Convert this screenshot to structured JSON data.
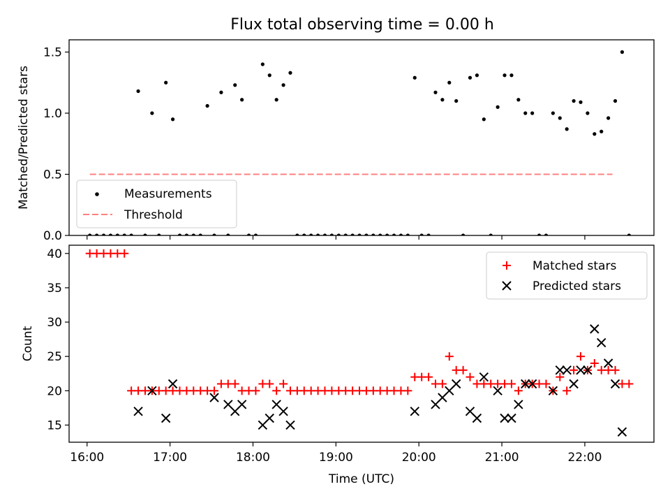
{
  "figure": {
    "title": "Flux total observing time = 0.00 h"
  },
  "chart_data": [
    {
      "type": "scatter",
      "ylabel": "Matched/Predicted stars",
      "ylim": [
        0.0,
        1.6
      ],
      "xlim_minutes": [
        -13,
        410
      ],
      "yticks": [
        {
          "v": 0.0,
          "label": "0.0"
        },
        {
          "v": 0.5,
          "label": "0.5"
        },
        {
          "v": 1.0,
          "label": "1.0"
        },
        {
          "v": 1.5,
          "label": "1.5"
        }
      ],
      "legend_position": "lower-left",
      "legend": [
        "Measurements",
        "Threshold"
      ],
      "threshold": {
        "value": 0.5,
        "x_range_minutes": [
          2,
          380
        ],
        "color": "#ff8080"
      },
      "measurements_color": "#000000",
      "measurements": [
        [
          2,
          0
        ],
        [
          7,
          0
        ],
        [
          12,
          0
        ],
        [
          17,
          0
        ],
        [
          22,
          0
        ],
        [
          27,
          0
        ],
        [
          32,
          0
        ],
        [
          37,
          1.18
        ],
        [
          42,
          0
        ],
        [
          47,
          1.0
        ],
        [
          52,
          0
        ],
        [
          57,
          1.25
        ],
        [
          62,
          0.95
        ],
        [
          67,
          0
        ],
        [
          72,
          0
        ],
        [
          77,
          0
        ],
        [
          82,
          0
        ],
        [
          87,
          1.06
        ],
        [
          92,
          0
        ],
        [
          97,
          1.17
        ],
        [
          102,
          0
        ],
        [
          107,
          1.23
        ],
        [
          112,
          1.11
        ],
        [
          117,
          0
        ],
        [
          122,
          0
        ],
        [
          127,
          1.4
        ],
        [
          132,
          1.31
        ],
        [
          137,
          1.11
        ],
        [
          142,
          1.23
        ],
        [
          147,
          1.33
        ],
        [
          152,
          0
        ],
        [
          157,
          0
        ],
        [
          162,
          0
        ],
        [
          167,
          0
        ],
        [
          172,
          0
        ],
        [
          177,
          0
        ],
        [
          182,
          0
        ],
        [
          187,
          0
        ],
        [
          192,
          0
        ],
        [
          197,
          0
        ],
        [
          202,
          0
        ],
        [
          207,
          0
        ],
        [
          212,
          0
        ],
        [
          217,
          0
        ],
        [
          222,
          0
        ],
        [
          227,
          0
        ],
        [
          232,
          0
        ],
        [
          237,
          1.29
        ],
        [
          242,
          0
        ],
        [
          247,
          0
        ],
        [
          252,
          1.17
        ],
        [
          257,
          1.11
        ],
        [
          262,
          1.25
        ],
        [
          267,
          1.1
        ],
        [
          272,
          0
        ],
        [
          277,
          1.29
        ],
        [
          282,
          1.31
        ],
        [
          287,
          0.95
        ],
        [
          292,
          0
        ],
        [
          297,
          1.05
        ],
        [
          302,
          1.31
        ],
        [
          307,
          1.31
        ],
        [
          312,
          1.11
        ],
        [
          317,
          1.0
        ],
        [
          322,
          1.0
        ],
        [
          327,
          0
        ],
        [
          332,
          0
        ],
        [
          337,
          1.0
        ],
        [
          342,
          0.96
        ],
        [
          347,
          0.87
        ],
        [
          352,
          1.1
        ],
        [
          357,
          1.09
        ],
        [
          362,
          1.0
        ],
        [
          367,
          0.83
        ],
        [
          372,
          0.85
        ],
        [
          377,
          0.96
        ],
        [
          382,
          1.1
        ],
        [
          387,
          1.5
        ],
        [
          392,
          0
        ]
      ]
    },
    {
      "type": "scatter",
      "xlabel": "Time (UTC)",
      "ylabel": "Count",
      "ylim": [
        12.5,
        41.2
      ],
      "xlim_minutes": [
        -13,
        410
      ],
      "yticks": [
        {
          "v": 15,
          "label": "15"
        },
        {
          "v": 20,
          "label": "20"
        },
        {
          "v": 25,
          "label": "25"
        },
        {
          "v": 30,
          "label": "30"
        },
        {
          "v": 35,
          "label": "35"
        },
        {
          "v": 40,
          "label": "40"
        }
      ],
      "xticks": [
        {
          "v": 0,
          "label": "16:00"
        },
        {
          "v": 60,
          "label": "17:00"
        },
        {
          "v": 120,
          "label": "18:00"
        },
        {
          "v": 180,
          "label": "19:00"
        },
        {
          "v": 240,
          "label": "20:00"
        },
        {
          "v": 300,
          "label": "21:00"
        },
        {
          "v": 360,
          "label": "22:00"
        }
      ],
      "legend_position": "upper-right",
      "legend": [
        "Matched stars",
        "Predicted stars"
      ],
      "matched_color": "#ff0000",
      "predicted_color": "#000000",
      "matched": [
        [
          2,
          40
        ],
        [
          7,
          40
        ],
        [
          12,
          40
        ],
        [
          17,
          40
        ],
        [
          22,
          40
        ],
        [
          27,
          40
        ],
        [
          32,
          20
        ],
        [
          37,
          20
        ],
        [
          42,
          20
        ],
        [
          47,
          20
        ],
        [
          52,
          20
        ],
        [
          57,
          20
        ],
        [
          62,
          20
        ],
        [
          67,
          20
        ],
        [
          72,
          20
        ],
        [
          77,
          20
        ],
        [
          82,
          20
        ],
        [
          87,
          20
        ],
        [
          92,
          20
        ],
        [
          97,
          21
        ],
        [
          102,
          21
        ],
        [
          107,
          21
        ],
        [
          112,
          20
        ],
        [
          117,
          20
        ],
        [
          122,
          20
        ],
        [
          127,
          21
        ],
        [
          132,
          21
        ],
        [
          137,
          20
        ],
        [
          142,
          21
        ],
        [
          147,
          20
        ],
        [
          152,
          20
        ],
        [
          157,
          20
        ],
        [
          162,
          20
        ],
        [
          167,
          20
        ],
        [
          172,
          20
        ],
        [
          177,
          20
        ],
        [
          182,
          20
        ],
        [
          187,
          20
        ],
        [
          192,
          20
        ],
        [
          197,
          20
        ],
        [
          202,
          20
        ],
        [
          207,
          20
        ],
        [
          212,
          20
        ],
        [
          217,
          20
        ],
        [
          222,
          20
        ],
        [
          227,
          20
        ],
        [
          232,
          20
        ],
        [
          237,
          22
        ],
        [
          242,
          22
        ],
        [
          247,
          22
        ],
        [
          252,
          21
        ],
        [
          257,
          21
        ],
        [
          262,
          25
        ],
        [
          267,
          23
        ],
        [
          272,
          23
        ],
        [
          277,
          22
        ],
        [
          282,
          21
        ],
        [
          287,
          21
        ],
        [
          292,
          21
        ],
        [
          297,
          21
        ],
        [
          302,
          21
        ],
        [
          307,
          21
        ],
        [
          312,
          20
        ],
        [
          317,
          21
        ],
        [
          322,
          21
        ],
        [
          327,
          21
        ],
        [
          332,
          21
        ],
        [
          337,
          20
        ],
        [
          342,
          22
        ],
        [
          347,
          20
        ],
        [
          352,
          23
        ],
        [
          357,
          25
        ],
        [
          362,
          23
        ],
        [
          367,
          24
        ],
        [
          372,
          23
        ],
        [
          377,
          23
        ],
        [
          382,
          23
        ],
        [
          387,
          21
        ],
        [
          392,
          21
        ]
      ],
      "predicted": [
        [
          37,
          17
        ],
        [
          47,
          20
        ],
        [
          57,
          16
        ],
        [
          62,
          21
        ],
        [
          107,
          17
        ],
        [
          112,
          18
        ],
        [
          132,
          16
        ],
        [
          137,
          18
        ],
        [
          142,
          17
        ],
        [
          147,
          15
        ],
        [
          127,
          15
        ],
        [
          92,
          19
        ],
        [
          102,
          18
        ],
        [
          237,
          17
        ],
        [
          252,
          18
        ],
        [
          257,
          19
        ],
        [
          262,
          20
        ],
        [
          267,
          21
        ],
        [
          277,
          17
        ],
        [
          282,
          16
        ],
        [
          287,
          22
        ],
        [
          297,
          20
        ],
        [
          302,
          16
        ],
        [
          307,
          16
        ],
        [
          312,
          18
        ],
        [
          317,
          21
        ],
        [
          322,
          21
        ],
        [
          337,
          20
        ],
        [
          342,
          23
        ],
        [
          347,
          23
        ],
        [
          352,
          21
        ],
        [
          357,
          23
        ],
        [
          362,
          23
        ],
        [
          367,
          29
        ],
        [
          372,
          27
        ],
        [
          377,
          24
        ],
        [
          382,
          21
        ],
        [
          387,
          14
        ]
      ]
    }
  ]
}
